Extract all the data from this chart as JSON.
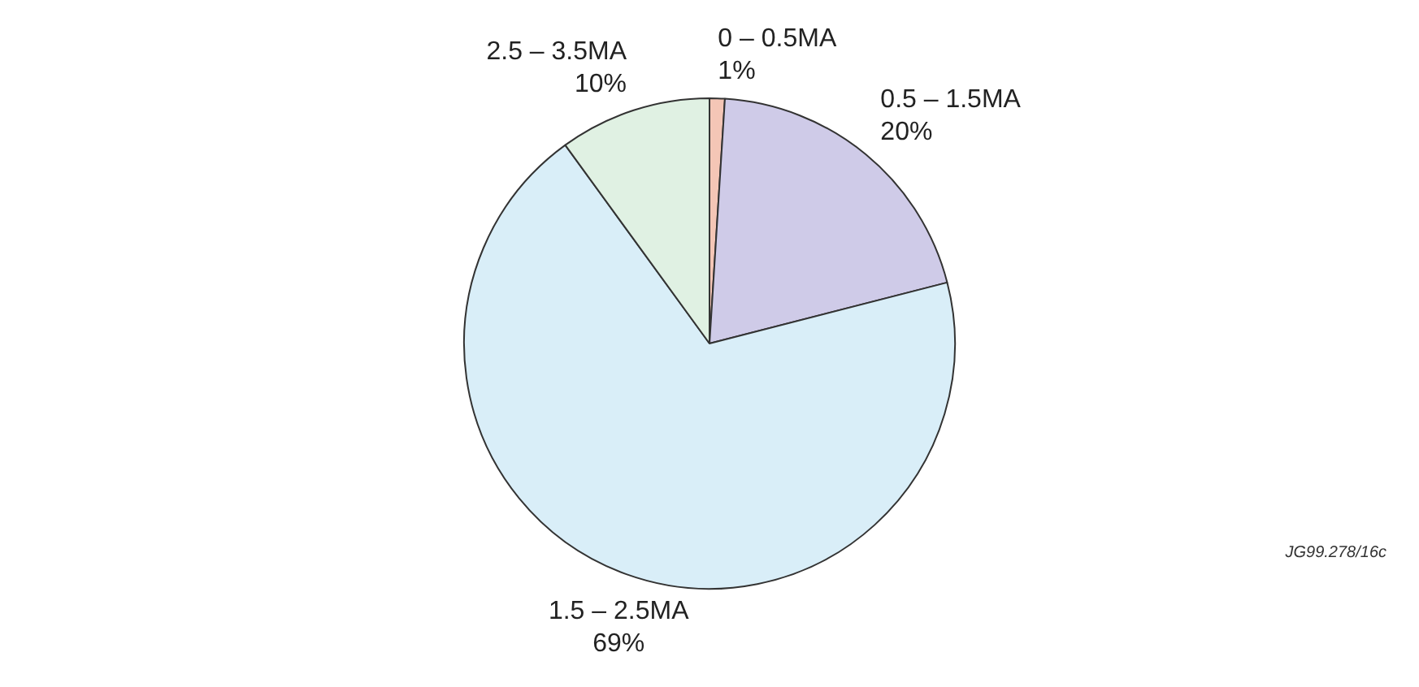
{
  "chart_data": {
    "type": "pie",
    "categories": [
      "0 – 0.5MA",
      "0.5 – 1.5MA",
      "1.5 – 2.5MA",
      "2.5 – 3.5MA"
    ],
    "values": [
      1,
      20,
      69,
      10
    ],
    "value_labels": [
      "1%",
      "20%",
      "69%",
      "10%"
    ],
    "colors": [
      "#f4c6b6",
      "#cfcbe8",
      "#d9eef8",
      "#e0f1e3"
    ],
    "legend": false,
    "annotations": [
      "JG99.278/16c"
    ]
  }
}
